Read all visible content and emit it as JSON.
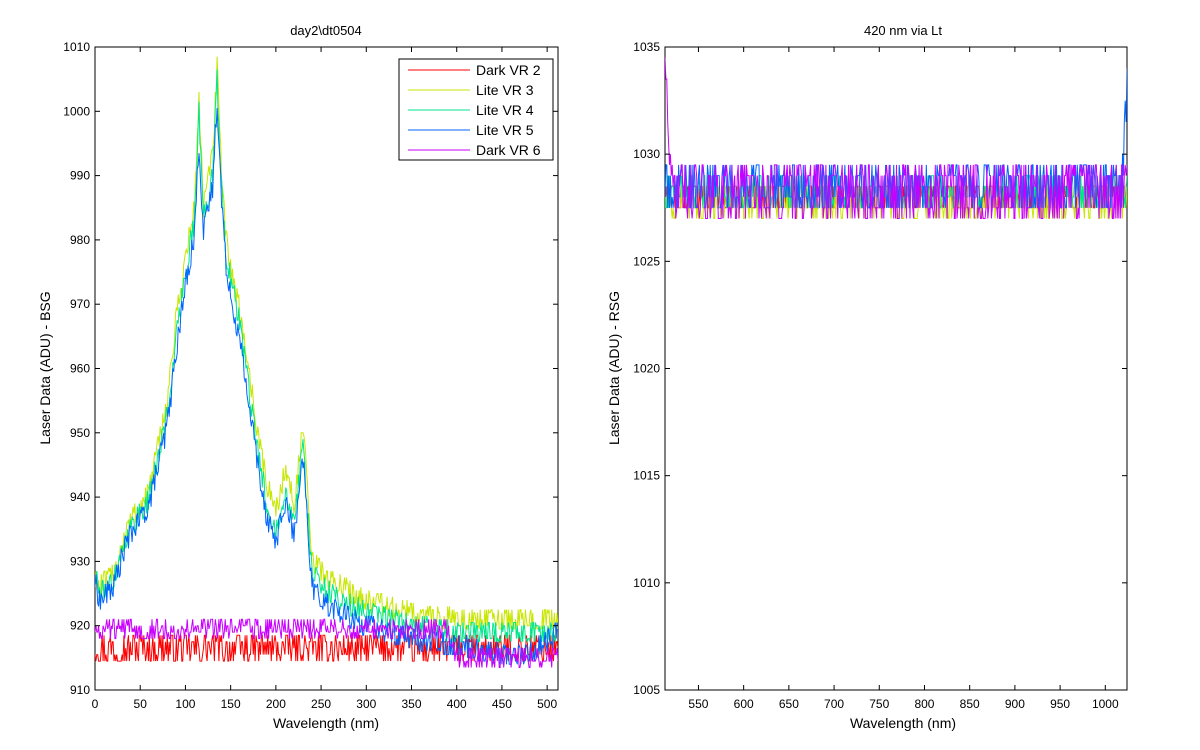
{
  "chart_data": [
    {
      "type": "line",
      "title": "day2\\dt0504",
      "xlabel": "Wavelength (nm)",
      "ylabel": "Laser Data (ADU) - BSG",
      "xlim": [
        0,
        512
      ],
      "ylim": [
        910,
        1010
      ],
      "xticks": [
        0,
        50,
        100,
        150,
        200,
        250,
        300,
        350,
        400,
        450,
        500
      ],
      "yticks": [
        910,
        920,
        930,
        940,
        950,
        960,
        970,
        980,
        990,
        1000,
        1010
      ],
      "grid": false,
      "legend_position": "top-right",
      "series": [
        {
          "name": "Dark VR 2",
          "color": "#ff0000",
          "noise": 2.0,
          "x": [
            0,
            5,
            20,
            60,
            100,
            150,
            200,
            250,
            300,
            350,
            400,
            450,
            480,
            512
          ],
          "y": [
            916.5,
            916.5,
            916.5,
            916.5,
            916.5,
            916.5,
            916.5,
            916.5,
            916.5,
            916.5,
            916.5,
            916.5,
            916.5,
            916.5
          ]
        },
        {
          "name": "Lite VR 3",
          "color": "#c8e600",
          "noise": 1.6,
          "x": [
            0,
            5,
            20,
            35,
            60,
            80,
            90,
            100,
            110,
            115,
            120,
            130,
            135,
            140,
            145,
            150,
            160,
            170,
            180,
            190,
            200,
            210,
            215,
            220,
            225,
            230,
            240,
            260,
            300,
            350,
            400,
            450,
            500,
            512
          ],
          "y": [
            928,
            926,
            928,
            935,
            941,
            955,
            968,
            977,
            985,
            1002,
            985,
            993,
            1007,
            990,
            980,
            976,
            969,
            960,
            950,
            942,
            938,
            944,
            942,
            939,
            945,
            951,
            930,
            927,
            924,
            922,
            921,
            921,
            921,
            921
          ]
        },
        {
          "name": "Lite VR 4",
          "color": "#00e68c",
          "noise": 1.6,
          "x": [
            0,
            5,
            20,
            35,
            60,
            80,
            90,
            100,
            110,
            115,
            120,
            130,
            135,
            140,
            145,
            150,
            160,
            170,
            180,
            190,
            200,
            210,
            215,
            220,
            225,
            230,
            240,
            260,
            300,
            350,
            400,
            450,
            500,
            512
          ],
          "y": [
            928,
            925,
            927,
            934,
            940,
            953,
            965,
            975,
            983,
            1000,
            983,
            990,
            1005,
            988,
            978,
            974,
            967,
            957,
            947,
            939,
            935,
            941,
            939,
            936,
            942,
            948,
            928,
            925,
            922,
            920,
            919,
            919,
            919,
            919
          ]
        },
        {
          "name": "Lite VR 5",
          "color": "#0064ff",
          "noise": 1.6,
          "x": [
            0,
            5,
            20,
            35,
            60,
            80,
            90,
            100,
            110,
            115,
            120,
            130,
            135,
            140,
            145,
            150,
            160,
            170,
            180,
            190,
            200,
            210,
            215,
            220,
            225,
            230,
            240,
            260,
            300,
            350,
            400,
            450,
            480,
            512
          ],
          "y": [
            927,
            924,
            926,
            933,
            939,
            951,
            963,
            973,
            981,
            995,
            981,
            988,
            1002,
            986,
            976,
            972,
            964,
            955,
            945,
            937,
            933,
            939,
            937,
            934,
            939,
            946,
            926,
            923,
            920,
            918,
            917,
            915.5,
            915.5,
            919
          ]
        },
        {
          "name": "Dark VR 6",
          "color": "#c800ff",
          "noise": 1.4,
          "x": [
            0,
            5,
            20,
            60,
            100,
            150,
            200,
            250,
            300,
            350,
            390,
            400,
            420,
            450,
            500,
            512
          ],
          "y": [
            919.5,
            919.5,
            919.5,
            919.5,
            919.5,
            919.5,
            919.5,
            919.5,
            919.5,
            919.5,
            919.5,
            915,
            915,
            915,
            915,
            915
          ]
        }
      ]
    },
    {
      "type": "line",
      "title": "420 nm via Lt",
      "xlabel": "Wavelength (nm)",
      "ylabel": "Laser Data (ADU) - RSG",
      "xlim": [
        513,
        1024
      ],
      "ylim": [
        1005,
        1035
      ],
      "xticks": [
        550,
        600,
        650,
        700,
        750,
        800,
        850,
        900,
        950,
        1000
      ],
      "yticks": [
        1005,
        1010,
        1015,
        1020,
        1025,
        1030,
        1035
      ],
      "grid": false,
      "series": [
        {
          "color": "#ff0000",
          "noise": 0.6,
          "x": [
            513,
            1024
          ],
          "y": [
            1028,
            1028
          ]
        },
        {
          "color": "#c8e600",
          "noise": 0.9,
          "x": [
            513,
            1024
          ],
          "y": [
            1027.8,
            1027.8
          ]
        },
        {
          "color": "#00e68c",
          "noise": 0.8,
          "x": [
            513,
            1024
          ],
          "y": [
            1028.2,
            1028.2
          ]
        },
        {
          "color": "#0064ff",
          "noise": 1.0,
          "x": [
            513,
            1018,
            1024
          ],
          "y": [
            1028.4,
            1028.4,
            1033
          ]
        },
        {
          "color": "#c800ff",
          "noise": 1.3,
          "x": [
            513,
            520,
            1024
          ],
          "y": [
            1035,
            1028.3,
            1028.3
          ]
        }
      ]
    }
  ]
}
